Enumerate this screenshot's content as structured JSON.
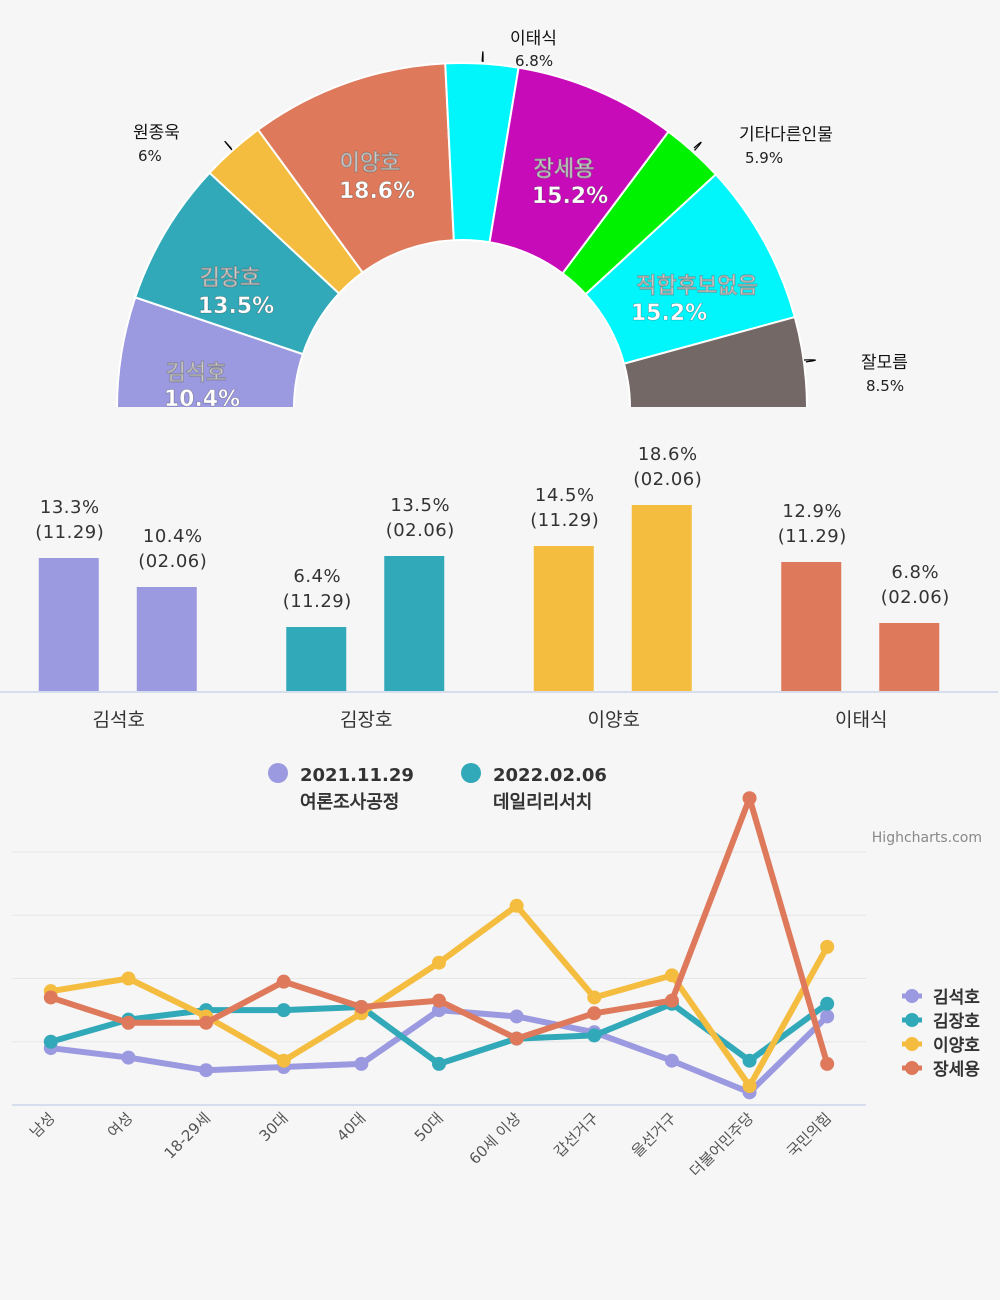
{
  "credit": "Highcharts.com",
  "chart_data": [
    {
      "type": "pie",
      "subtype": "semi-donut",
      "slices": [
        {
          "name": "김석호",
          "value": 10.4,
          "label": "10.4%",
          "color": "#9b99e0"
        },
        {
          "name": "김장호",
          "value": 13.5,
          "label": "13.5%",
          "color": "#32a9b8"
        },
        {
          "name": "원종욱",
          "value": 6,
          "label": "6%",
          "color": "#f4bd3f"
        },
        {
          "name": "이양호",
          "value": 18.6,
          "label": "18.6%",
          "color": "#de7a5b"
        },
        {
          "name": "이태식",
          "value": 6.8,
          "label": "6.8%",
          "color": "#00f6fb"
        },
        {
          "name": "장세용",
          "value": 15.2,
          "label": "15.2%",
          "color": "#c80bb8"
        },
        {
          "name": "기타다른인물",
          "value": 5.9,
          "label": "5.9%",
          "color": "#00f200"
        },
        {
          "name": "적합후보없음",
          "value": 15.2,
          "label": "15.2%",
          "color": "#00f6fb"
        },
        {
          "name": "잘모름",
          "value": 8.5,
          "label": "8.5%",
          "color": "#736866"
        }
      ]
    },
    {
      "type": "bar",
      "categories": [
        "김석호",
        "김장호",
        "이양호",
        "이태식"
      ],
      "ylim": [
        0,
        20
      ],
      "series": [
        {
          "name": "2021.11.29",
          "sub": "여론조사공정",
          "date_label": "(11.29)",
          "values": [
            13.3,
            6.4,
            14.5,
            12.9
          ]
        },
        {
          "name": "2022.02.06",
          "sub": "데일리리서치",
          "date_label": "(02.06)",
          "values": [
            10.4,
            13.5,
            18.6,
            6.8
          ]
        }
      ],
      "colors": [
        "#9b99e0",
        "#32a9b8",
        "#f4bd3f",
        "#de7a5b"
      ],
      "legend_colors": [
        "#9b99e0",
        "#32a9b8"
      ]
    },
    {
      "type": "line",
      "categories": [
        "남성",
        "여성",
        "18-29세",
        "30대",
        "40대",
        "50대",
        "60세 이상",
        "갑선거구",
        "을선거구",
        "더불어민주당",
        "국민의힘"
      ],
      "ylim": [
        0,
        40
      ],
      "grid": true,
      "legend": "right",
      "series": [
        {
          "name": "김석호",
          "color": "#9b99e0",
          "values": [
            9.0,
            7.5,
            5.5,
            6.0,
            6.5,
            15.0,
            14.0,
            11.5,
            7.0,
            2.0,
            14.0
          ]
        },
        {
          "name": "김장호",
          "color": "#32a9b8",
          "values": [
            10.0,
            13.5,
            15.0,
            15.0,
            15.5,
            6.5,
            10.5,
            11.0,
            16.0,
            7.0,
            16.0
          ]
        },
        {
          "name": "이양호",
          "color": "#f4bd3f",
          "values": [
            18.0,
            20.0,
            14.0,
            7.0,
            14.5,
            22.5,
            31.5,
            17.0,
            20.5,
            3.0,
            25.0
          ]
        },
        {
          "name": "장세용",
          "color": "#de7a5b",
          "values": [
            17.0,
            13.0,
            13.0,
            19.5,
            15.5,
            16.5,
            10.5,
            14.5,
            16.5,
            48.5,
            6.5
          ]
        }
      ]
    }
  ]
}
